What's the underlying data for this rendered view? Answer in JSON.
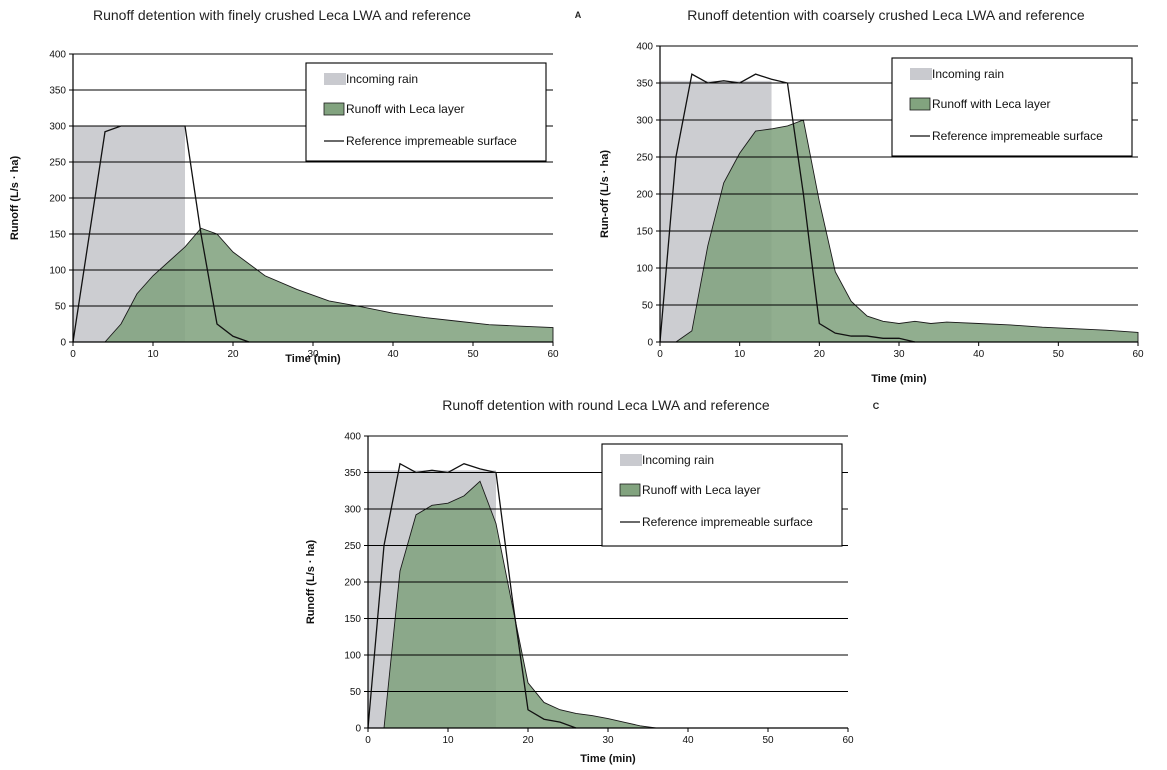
{
  "chart_data": [
    {
      "type": "area",
      "title": "Runoff detention with finely crushed Leca LWA and reference",
      "panel_label": "A",
      "xlabel": "Time (min)",
      "ylabel": "Runoff (L/s · ha)",
      "xlim": [
        0,
        60
      ],
      "ylim": [
        0,
        400
      ],
      "x_ticks": [
        0,
        10,
        20,
        30,
        40,
        50,
        60
      ],
      "y_ticks": [
        0,
        50,
        100,
        150,
        200,
        250,
        300,
        350,
        400
      ],
      "grid": "horizontal",
      "legend_position": "top-right",
      "series": [
        {
          "name": "Incoming rain",
          "style": "rain",
          "x": [
            0,
            14
          ],
          "y": [
            300,
            300
          ],
          "color": "#c9cacf"
        },
        {
          "name": "Runoff with Leca layer",
          "style": "area",
          "x": [
            4,
            6,
            8,
            10,
            12,
            14,
            16,
            18,
            20,
            24,
            28,
            32,
            36,
            40,
            44,
            48,
            52,
            56,
            60
          ],
          "y": [
            0,
            25,
            67,
            92,
            112,
            132,
            158,
            150,
            125,
            92,
            73,
            57,
            49,
            40,
            34,
            29,
            24,
            22,
            20
          ],
          "color": "#82a37f"
        },
        {
          "name": "Reference impremeable surface",
          "style": "line",
          "x": [
            0,
            4,
            6,
            8,
            10,
            12,
            14,
            16,
            18,
            20,
            22
          ],
          "y": [
            0,
            292,
            300,
            300,
            300,
            300,
            300,
            150,
            25,
            8,
            0
          ],
          "color": "#111111"
        }
      ]
    },
    {
      "type": "area",
      "title": "Runoff detention with coarsely crushed Leca LWA and reference",
      "xlabel": "Time (min)",
      "ylabel": "Run-off (L/s · ha)",
      "xlim": [
        0,
        60
      ],
      "ylim": [
        0,
        400
      ],
      "x_ticks": [
        0,
        10,
        20,
        30,
        40,
        50,
        60
      ],
      "y_ticks": [
        0,
        50,
        100,
        150,
        200,
        250,
        300,
        350,
        400
      ],
      "grid": "horizontal",
      "legend_position": "top-right",
      "series": [
        {
          "name": "Incoming rain",
          "style": "rain",
          "x": [
            0,
            14
          ],
          "y": [
            353,
            353
          ],
          "color": "#c9cacf"
        },
        {
          "name": "Runoff with Leca layer",
          "style": "area",
          "x": [
            2,
            4,
            6,
            8,
            10,
            12,
            14,
            16,
            18,
            20,
            22,
            24,
            26,
            28,
            30,
            32,
            34,
            36,
            40,
            44,
            48,
            52,
            56,
            60
          ],
          "y": [
            0,
            15,
            130,
            215,
            255,
            285,
            288,
            292,
            300,
            190,
            95,
            55,
            35,
            28,
            25,
            28,
            25,
            27,
            25,
            23,
            20,
            18,
            16,
            13
          ],
          "color": "#82a37f"
        },
        {
          "name": "Reference impremeable surface",
          "style": "line",
          "x": [
            0,
            2,
            4,
            6,
            8,
            10,
            12,
            14,
            16,
            18,
            20,
            22,
            24,
            26,
            28,
            30,
            32
          ],
          "y": [
            0,
            250,
            362,
            350,
            353,
            350,
            362,
            355,
            350,
            200,
            25,
            12,
            8,
            8,
            5,
            5,
            0
          ],
          "color": "#111111"
        }
      ]
    },
    {
      "type": "area",
      "title": "Runoff detention with round Leca LWA and reference",
      "panel_label": "C",
      "xlabel": "Time (min)",
      "ylabel": "Runoff (L/s · ha)",
      "xlim": [
        0,
        60
      ],
      "ylim": [
        0,
        400
      ],
      "x_ticks": [
        0,
        10,
        20,
        30,
        40,
        50,
        60
      ],
      "y_ticks": [
        0,
        50,
        100,
        150,
        200,
        250,
        300,
        350,
        400
      ],
      "grid": "horizontal",
      "legend_position": "top-right",
      "series": [
        {
          "name": "Incoming rain",
          "style": "rain",
          "x": [
            0,
            16
          ],
          "y": [
            353,
            353
          ],
          "color": "#c9cacf"
        },
        {
          "name": "Runoff with Leca layer",
          "style": "area",
          "x": [
            2,
            4,
            6,
            8,
            10,
            12,
            14,
            16,
            18,
            20,
            22,
            24,
            26,
            28,
            30,
            32,
            34,
            36
          ],
          "y": [
            0,
            215,
            292,
            305,
            308,
            318,
            338,
            280,
            170,
            62,
            35,
            25,
            20,
            17,
            13,
            8,
            3,
            0
          ],
          "color": "#82a37f"
        },
        {
          "name": "Reference impremeable surface",
          "style": "line",
          "x": [
            0,
            2,
            4,
            6,
            8,
            10,
            12,
            14,
            16,
            18,
            20,
            22,
            24,
            26
          ],
          "y": [
            0,
            250,
            362,
            350,
            353,
            350,
            362,
            355,
            350,
            180,
            25,
            12,
            8,
            0
          ],
          "color": "#111111"
        }
      ]
    }
  ]
}
